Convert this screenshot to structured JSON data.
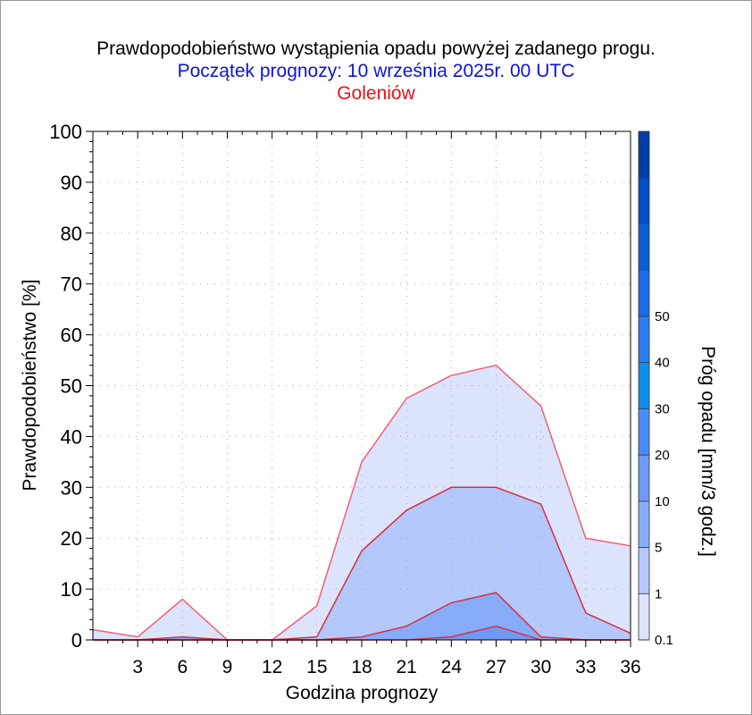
{
  "title": "Prawdopodobieństwo wystąpienia opadu powyżej zadanego progu.",
  "subtitle": "Początek prognozy: 10 września 2025r. 00 UTC",
  "location": "Goleniów",
  "chart_data": {
    "type": "area",
    "title": "Prawdopodobieństwo wystąpienia opadu powyżej zadanego progu.",
    "subtitle": "Początek prognozy: 10 września 2025r. 00 UTC",
    "location": "Goleniów",
    "xlabel": "Godzina prognozy",
    "ylabel": "Prawdopodobieństwo [%]",
    "colorbar_label": "Próg opadu [mm/3 godz.]",
    "x": [
      0,
      3,
      6,
      9,
      12,
      15,
      18,
      21,
      24,
      27,
      30,
      33,
      36
    ],
    "x_ticks": [
      "3",
      "6",
      "9",
      "12",
      "15",
      "18",
      "21",
      "24",
      "27",
      "30",
      "33",
      "36"
    ],
    "y_ticks": [
      "0",
      "10",
      "20",
      "30",
      "40",
      "50",
      "60",
      "70",
      "80",
      "90",
      "100"
    ],
    "xlim": [
      0,
      36
    ],
    "ylim": [
      0,
      100
    ],
    "grid": true,
    "series": [
      {
        "name": "0.1",
        "color": "#dce3fd",
        "values": [
          2,
          0.6,
          8,
          0,
          0,
          6.7,
          35,
          47.5,
          52,
          54,
          46,
          20,
          18.5
        ]
      },
      {
        "name": "1",
        "color": "#b4c8fb",
        "values": [
          0,
          0,
          0,
          0,
          0,
          0.6,
          17.5,
          25.5,
          30,
          30,
          26.7,
          5.3,
          1.3
        ]
      },
      {
        "name": "5",
        "color": "#86acfa",
        "values": [
          0,
          0,
          0.6,
          0,
          0,
          0,
          0.6,
          2.7,
          7.3,
          9.3,
          0.6,
          0,
          0
        ]
      },
      {
        "name": "10",
        "color": "#6e9af6",
        "values": [
          0,
          0,
          0,
          0,
          0,
          0,
          0,
          0,
          0.6,
          2.7,
          0,
          0,
          0
        ]
      }
    ],
    "colorbar": {
      "tick_labels": [
        "0.1",
        "1",
        "5",
        "10",
        "20",
        "30",
        "40",
        "50"
      ],
      "colors": [
        "#dce3fd",
        "#b4c8fb",
        "#86acfa",
        "#6e9af6",
        "#4d8cf8",
        "#0e8ff0",
        "#2e7cf0",
        "#1f6bea",
        "#0c5dd8",
        "#044fc4",
        "#003da8"
      ]
    }
  }
}
